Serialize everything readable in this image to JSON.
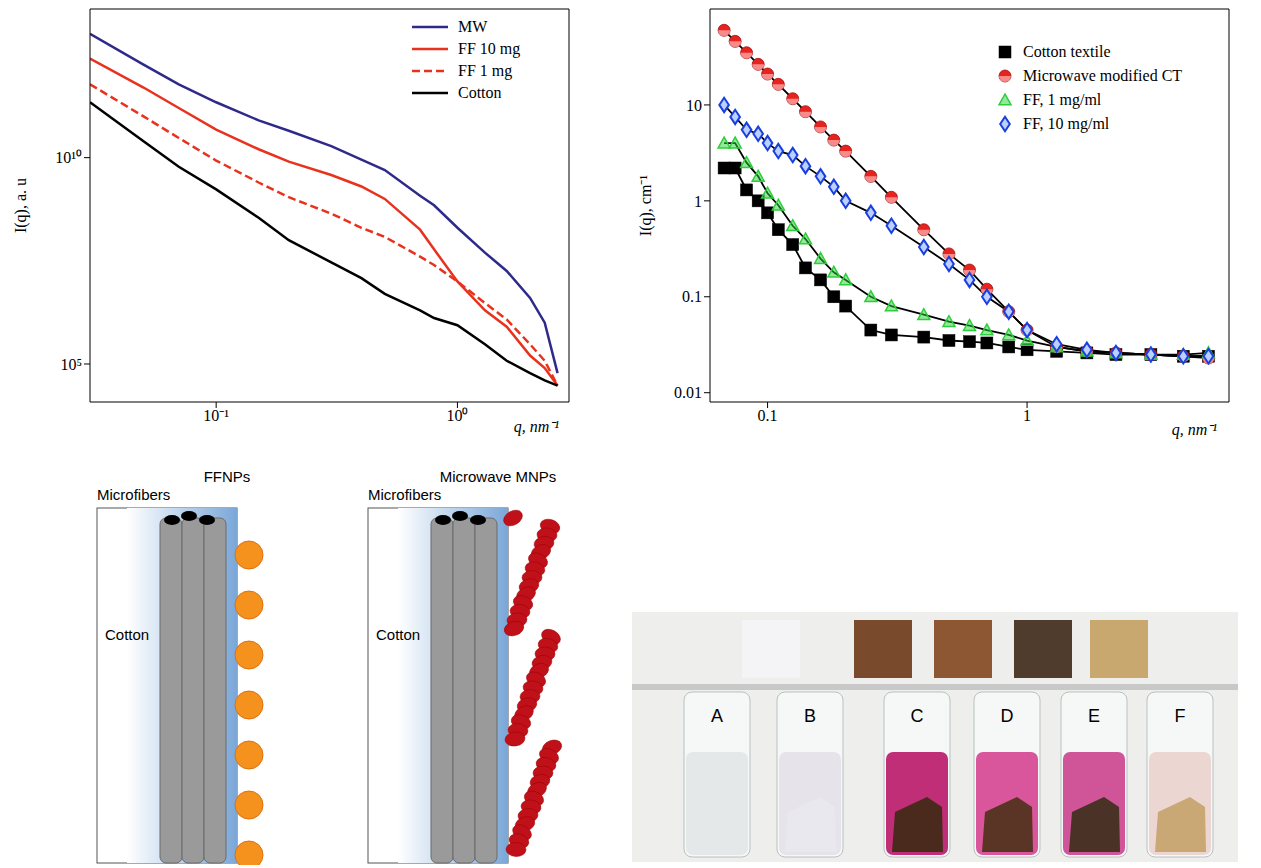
{
  "chart_data": [
    {
      "type": "line",
      "log": true,
      "x_label": "q, nm⁻¹",
      "y_label": "I(q), a. u",
      "xlim": [
        0.03,
        2.9
      ],
      "ylim": [
        12000,
        40000000000000
      ],
      "xticks": [
        {
          "value": 0.1,
          "label": "10⁻¹"
        },
        {
          "value": 1,
          "label": "10⁰"
        }
      ],
      "yticks": [
        {
          "value": 100000,
          "label": "10⁵"
        },
        {
          "value": 10000000000,
          "label": "10¹⁰"
        }
      ],
      "legend": "top-right",
      "x": [
        0.03,
        0.05,
        0.07,
        0.1,
        0.15,
        0.2,
        0.3,
        0.4,
        0.5,
        0.7,
        0.8,
        1,
        1.3,
        1.6,
        2,
        2.3,
        2.6
      ],
      "series": [
        {
          "name": "MW",
          "color": "#2f2a8a",
          "line_style": "solid",
          "values": [
            10000000000000,
            1800000000000,
            600000000000,
            220000000000,
            80000000000,
            45000000000,
            19000000000,
            9000000000,
            5000000000,
            1200000000,
            700000000,
            200000000,
            50000000,
            18000000,
            4000000,
            1000000,
            60000
          ]
        },
        {
          "name": "FF 10 mg",
          "color": "#e8321e",
          "line_style": "solid",
          "values": [
            2500000000000,
            500000000000,
            160000000000,
            48000000000,
            16000000000,
            8000000000,
            3800000000,
            2000000000,
            1000000000,
            180000000,
            60000000,
            10000000,
            2000000,
            800000,
            160000,
            80000,
            30000
          ]
        },
        {
          "name": "FF 1 mg",
          "color": "#e8321e",
          "line_style": "dashed",
          "values": [
            600000000000,
            100000000000,
            30000000000,
            8500000000,
            2500000000,
            1100000000,
            440000000,
            200000000,
            120000000,
            40000000,
            25000000,
            10000000,
            3000000,
            1200000,
            300000,
            120000,
            30000
          ]
        },
        {
          "name": "Cotton",
          "color": "#000000",
          "line_style": "solid",
          "values": [
            220000000000,
            25000000000,
            6000000000,
            1700000000,
            350000000,
            100000000,
            29000000,
            12000000,
            5000000,
            2000000,
            1300000,
            870000,
            300000,
            120000,
            60000,
            40000,
            30000
          ]
        }
      ]
    },
    {
      "type": "scatter",
      "log": true,
      "x_label": "q, nm⁻¹",
      "y_label": "I(q), cm⁻¹",
      "xlim": [
        0.06,
        6
      ],
      "ylim": [
        0.008,
        100
      ],
      "xticks": [
        0.1,
        1
      ],
      "yticks": [
        0.01,
        0.1,
        1,
        10
      ],
      "legend": "top-right",
      "x": [
        0.068,
        0.075,
        0.083,
        0.092,
        0.1,
        0.11,
        0.125,
        0.14,
        0.16,
        0.18,
        0.2,
        0.25,
        0.3,
        0.4,
        0.5,
        0.6,
        0.7,
        0.85,
        1,
        1.3,
        1.7,
        2.2,
        3,
        4,
        5
      ],
      "series": [
        {
          "name": "Cotton textile",
          "color": "#000000",
          "marker": "square",
          "line_style": "solid",
          "values": [
            2.2,
            2.2,
            1.3,
            1.0,
            0.75,
            0.5,
            0.35,
            0.2,
            0.15,
            0.1,
            0.08,
            0.045,
            0.04,
            0.038,
            0.035,
            0.034,
            0.033,
            0.03,
            0.028,
            0.027,
            0.026,
            0.025,
            0.025,
            0.024,
            0.024
          ]
        },
        {
          "name": "Microwave modified CT",
          "color": "#e8231e",
          "marker": "circle",
          "line_style": "solid",
          "values": [
            60,
            46,
            35,
            26.5,
            21,
            16.4,
            11.6,
            8.5,
            5.9,
            4.3,
            3.3,
            1.8,
            1.09,
            0.5,
            0.28,
            0.19,
            0.12,
            0.07,
            0.045,
            0.03,
            0.027,
            0.026,
            0.025,
            0.024,
            0.023
          ]
        },
        {
          "name": "FF, 1 mg/ml",
          "color": "#2ccf3a",
          "marker": "triangle",
          "line_style": "solid",
          "values": [
            4,
            4,
            2.5,
            1.8,
            1.2,
            0.9,
            0.55,
            0.4,
            0.25,
            0.18,
            0.15,
            0.1,
            0.08,
            0.065,
            0.055,
            0.05,
            0.045,
            0.04,
            0.035,
            0.03,
            0.027,
            0.026,
            0.025,
            0.025,
            0.026
          ]
        },
        {
          "name": "FF, 10 mg/ml",
          "color": "#1a3fe0",
          "marker": "diamond",
          "line_style": "solid",
          "values": [
            10,
            7.5,
            5.5,
            5,
            4,
            3.3,
            3,
            2.3,
            1.8,
            1.4,
            1.0,
            0.75,
            0.55,
            0.33,
            0.22,
            0.15,
            0.1,
            0.07,
            0.045,
            0.032,
            0.028,
            0.026,
            0.025,
            0.024,
            0.024
          ]
        }
      ]
    }
  ],
  "diagrams": [
    {
      "title": "FFNPs",
      "labels": [
        "Microfibers",
        "Cotton"
      ]
    },
    {
      "title": "Microwave MNPs",
      "labels": [
        "Microfibers",
        "Cotton"
      ]
    }
  ],
  "photo": {
    "tube_labels": [
      "A",
      "B",
      "C",
      "D",
      "E",
      "F"
    ]
  }
}
